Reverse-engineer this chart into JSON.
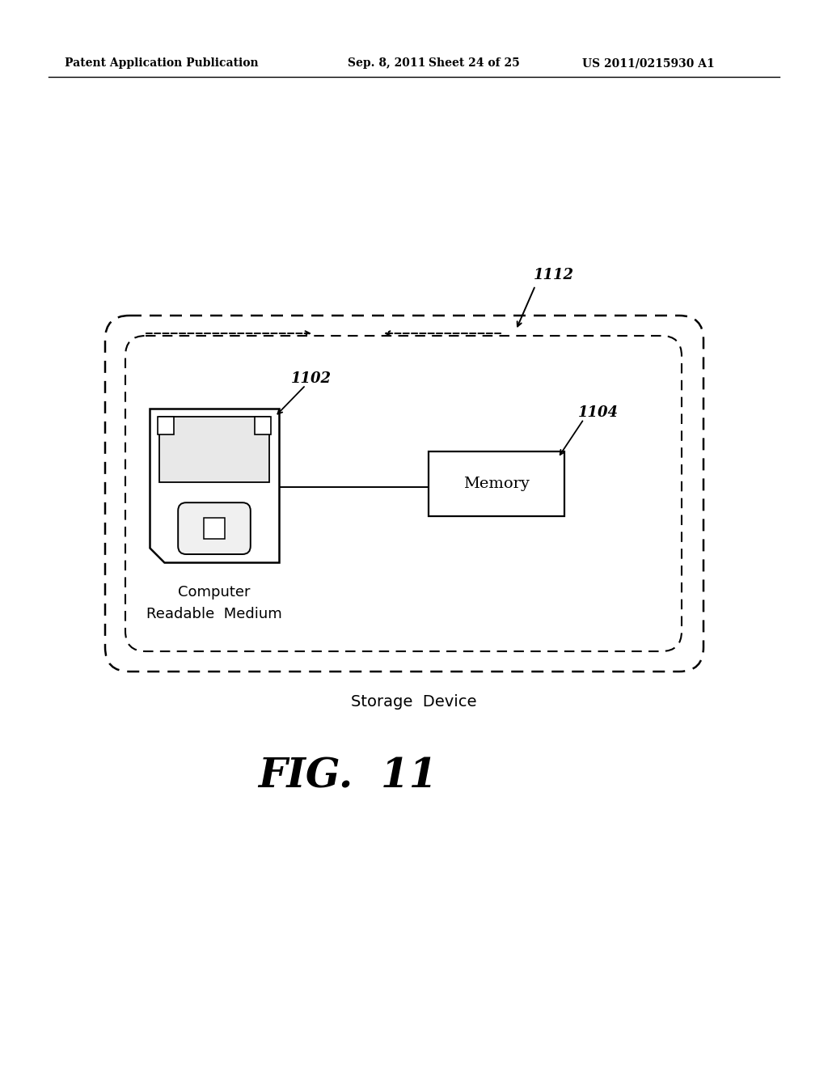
{
  "bg_color": "#ffffff",
  "header_left": "Patent Application Publication",
  "header_mid": "Sep. 8, 2011   Sheet 24 of 25",
  "header_right": "US 2011/0215930 A1",
  "fig_label": "FIG.  11",
  "storage_device_label": "Storage  Device",
  "crm_label_line1": "Computer",
  "crm_label_line2": "Readable  Medium",
  "memory_label": "Memory",
  "label_1102": "1102",
  "label_1104": "1104",
  "label_1112": "1112"
}
